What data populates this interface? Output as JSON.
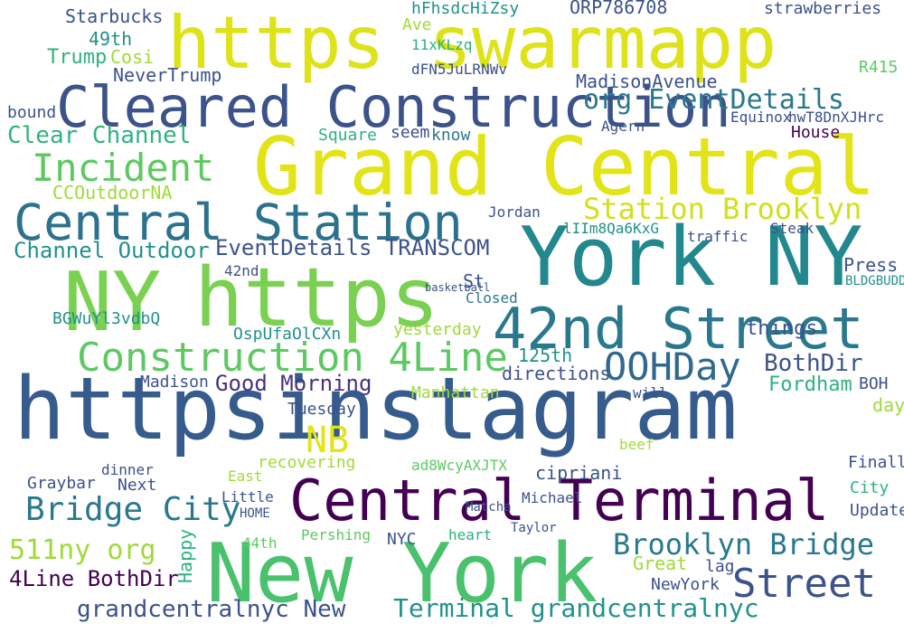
{
  "words": [
    "https swarmapp",
    "Cleared Construction",
    "Grand Central",
    "Central Station",
    "Incident",
    "Clear Channel",
    "NY",
    "https",
    "York NY",
    "42nd Street",
    "Construction 4Line",
    "httpsinstagram",
    "Central Terminal",
    "New York",
    "Station Brooklyn",
    "org EventDetails",
    "Channel Outdoor",
    "EventDetails TRANSCOM",
    "OOHDay",
    "BothDir",
    "Good Morning",
    "NB",
    "Bridge City",
    "511ny org",
    "4Line BothDir",
    "grandcentralnyc New",
    "Terminal grandcentralnyc",
    "Brooklyn Bridge",
    "Street",
    "Trump",
    "Starbucks",
    "49th",
    "NeverTrump",
    "Cosi",
    "bound",
    "CCOutdoorNA",
    "MadisonAvenue",
    "ORP786708",
    "hFhsdcHiZsy",
    "dFN5JuLRNWv",
    "11xKLzq",
    "Ave",
    "strawberries",
    "R415",
    "House",
    "hwT8DnXJHrc",
    "Equinox",
    "Agern",
    "know",
    "seem",
    "Square",
    "Press",
    "BLDGBUDDY",
    "BOH",
    "day",
    "Fordham",
    "Tuesday",
    "Madison",
    "Manhattan",
    "directions",
    "125th",
    "yesterday",
    "OspUfaOlCXn",
    "BGWuYl3vdbQ",
    "things",
    "Jordan",
    "lIIm8Qa6KxG",
    "traffic",
    "Steak",
    "Closed",
    "cipriani",
    "Michael",
    "Great",
    "NewYork",
    "lag",
    "City",
    "Update",
    "Finally",
    "Happy",
    "Graybar",
    "Next",
    "dinner",
    "Little",
    "HOME",
    "recovering",
    "Pershing",
    "44th",
    "NYC",
    "heart",
    "Taylor",
    "beef",
    "will",
    "Matcha",
    "ad8WcyAXJTX",
    "East",
    "St",
    "42nd",
    "basketball"
  ]
}
